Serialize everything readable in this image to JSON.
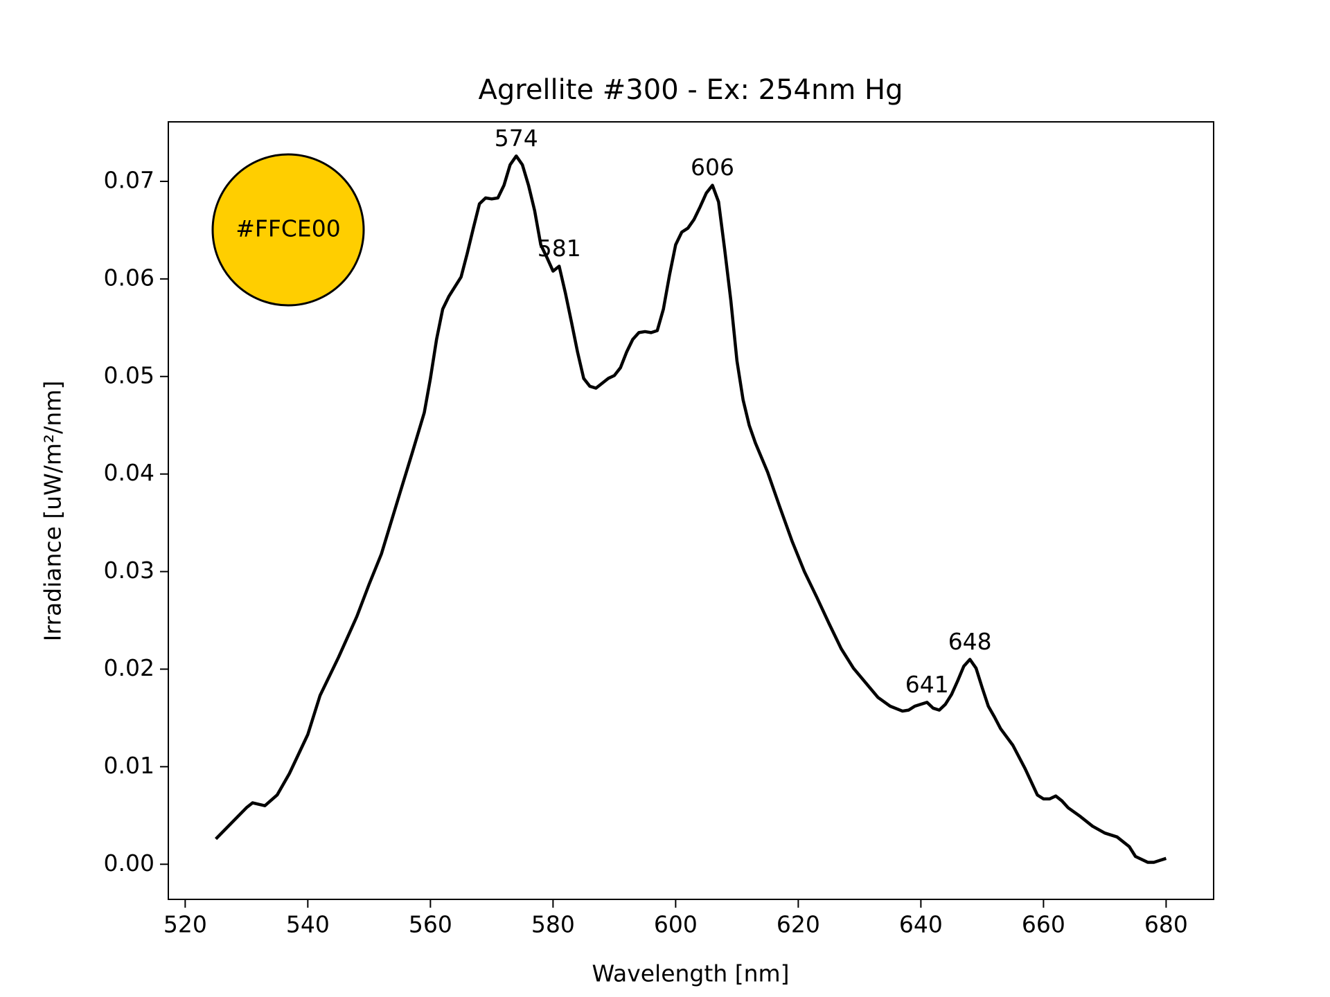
{
  "chart_data": {
    "type": "line",
    "title": "Agrellite #300 - Ex: 254nm Hg",
    "xlabel": "Wavelength [nm]",
    "ylabel": "Irradiance [uW/m²/nm]",
    "xlim": [
      517.25,
      687.75
    ],
    "ylim": [
      -0.0036,
      0.0761
    ],
    "xticks": [
      520,
      540,
      560,
      580,
      600,
      620,
      640,
      660,
      680
    ],
    "yticks": [
      {
        "value": 0,
        "label": "0.00"
      },
      0.01,
      0.02,
      0.03,
      0.04,
      0.05,
      0.06,
      0.07
    ],
    "grid": false,
    "series": [
      {
        "color": "#000000",
        "x": [
          525,
          530,
          531,
          533,
          535,
          537,
          540,
          542,
          545,
          548,
          550,
          552,
          555,
          557,
          559,
          560,
          561,
          562,
          563,
          565,
          566,
          567,
          568,
          569,
          570,
          571,
          572,
          573,
          574,
          575,
          576,
          577,
          578,
          579,
          580,
          581,
          582,
          583,
          584,
          585,
          586,
          587,
          588,
          589,
          590,
          591,
          592,
          593,
          594,
          595,
          596,
          597,
          598,
          599,
          600,
          601,
          602,
          603,
          604,
          605,
          606,
          607,
          608,
          609,
          610,
          611,
          612,
          613,
          615,
          617,
          619,
          621,
          623,
          625,
          627,
          629,
          631,
          633,
          635,
          637,
          638,
          639,
          641,
          642,
          643,
          644,
          645,
          646,
          647,
          648,
          649,
          650,
          651,
          652,
          653,
          655,
          657,
          659,
          660,
          661,
          662,
          663,
          664,
          666,
          668,
          670,
          672,
          674,
          675,
          677,
          678,
          679,
          680
        ],
        "values": [
          0.0026,
          0.0058,
          0.0063,
          0.006,
          0.0071,
          0.0093,
          0.0133,
          0.0173,
          0.0212,
          0.0254,
          0.0287,
          0.0318,
          0.038,
          0.0421,
          0.0463,
          0.0498,
          0.0538,
          0.0569,
          0.0582,
          0.0602,
          0.0626,
          0.0652,
          0.0677,
          0.0683,
          0.0682,
          0.0683,
          0.0696,
          0.0717,
          0.0726,
          0.0717,
          0.0696,
          0.067,
          0.0635,
          0.0622,
          0.0608,
          0.0613,
          0.0586,
          0.0556,
          0.0525,
          0.0498,
          0.049,
          0.0488,
          0.0493,
          0.0498,
          0.0501,
          0.0509,
          0.0525,
          0.0538,
          0.0545,
          0.0546,
          0.0545,
          0.0547,
          0.0569,
          0.0604,
          0.0635,
          0.0648,
          0.0652,
          0.0661,
          0.0674,
          0.0688,
          0.0696,
          0.0679,
          0.063,
          0.0578,
          0.0516,
          0.0476,
          0.045,
          0.0432,
          0.0402,
          0.0366,
          0.0331,
          0.03,
          0.0274,
          0.0247,
          0.0221,
          0.0201,
          0.0186,
          0.0171,
          0.0162,
          0.0157,
          0.0158,
          0.0162,
          0.0166,
          0.016,
          0.0158,
          0.0164,
          0.0174,
          0.0188,
          0.0203,
          0.021,
          0.0201,
          0.0181,
          0.0162,
          0.0151,
          0.0139,
          0.0122,
          0.0098,
          0.0071,
          0.0067,
          0.0067,
          0.007,
          0.0065,
          0.0058,
          0.0049,
          0.0039,
          0.0032,
          0.0028,
          0.0018,
          0.0008,
          0.0002,
          0.0002,
          0.0004,
          0.0006
        ]
      }
    ],
    "annotations": [
      {
        "text": "574",
        "x": 574,
        "y": 0.0726
      },
      {
        "text": "581",
        "x": 581,
        "y": 0.0613
      },
      {
        "text": "606",
        "x": 606,
        "y": 0.0696
      },
      {
        "text": "641",
        "x": 641,
        "y": 0.0166
      },
      {
        "text": "648",
        "x": 648,
        "y": 0.021
      }
    ],
    "swatch": {
      "label": "#FFCE00",
      "color": "#FFCE00"
    }
  }
}
